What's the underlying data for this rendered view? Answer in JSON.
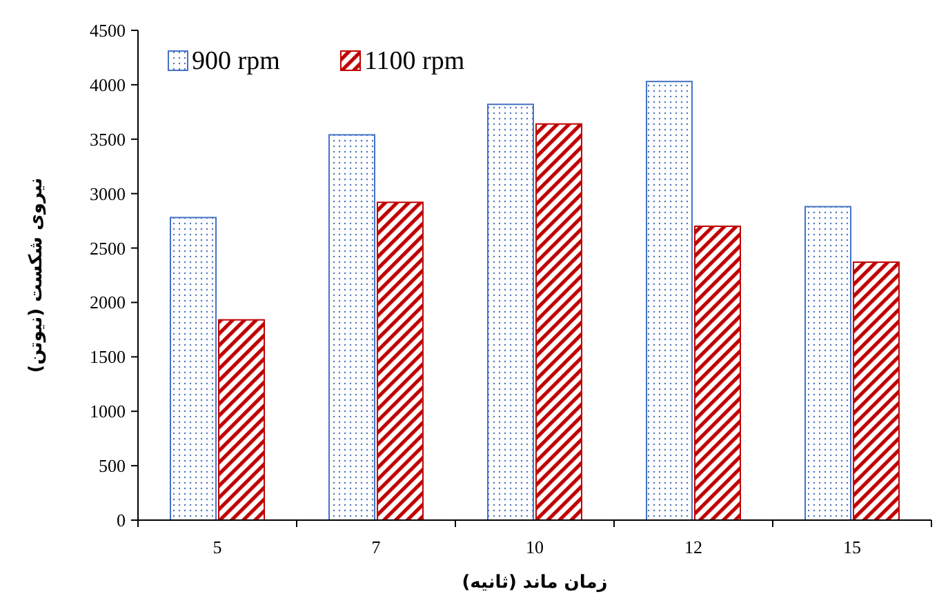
{
  "chart_data": {
    "type": "bar",
    "xlabel": "زمان ماند (ثانیه)",
    "ylabel": "نیروی شکست (نیوتن)",
    "categories": [
      "5",
      "7",
      "10",
      "12",
      "15"
    ],
    "series": [
      {
        "name": "900 rpm",
        "color": "#4472c4",
        "values": [
          2780,
          3540,
          3820,
          4030,
          2880
        ]
      },
      {
        "name": "1100 rpm",
        "color": "#c00000",
        "values": [
          1840,
          2920,
          3640,
          2700,
          2370
        ]
      }
    ],
    "ylim": [
      0,
      4500
    ],
    "yticks": [
      0,
      500,
      1000,
      1500,
      2000,
      2500,
      3000,
      3500,
      4000,
      4500
    ],
    "grid": false,
    "legend": "top left"
  }
}
